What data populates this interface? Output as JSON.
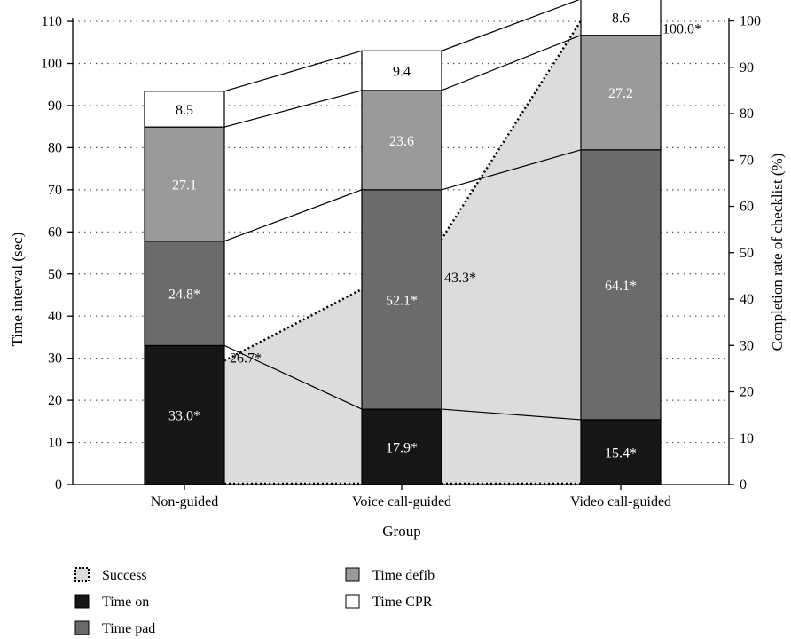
{
  "chart_data": {
    "type": "bar",
    "stacked": true,
    "categories": [
      "Non-guided",
      "Voice call-guided",
      "Video call-guided"
    ],
    "xlabel": "Group",
    "ylabel": "Time interval (sec)",
    "y2label": "Completion rate of checklist (%)",
    "ylim": [
      0,
      115
    ],
    "y_ticks": [
      0,
      10,
      20,
      30,
      40,
      50,
      60,
      70,
      80,
      90,
      100,
      110
    ],
    "y2lim": [
      0,
      100
    ],
    "y2_ticks": [
      0,
      10,
      20,
      30,
      40,
      50,
      60,
      70,
      80,
      90,
      100
    ],
    "grid": "horizontal dotted",
    "legend_position": "bottom-left",
    "series": [
      {
        "name": "Time on",
        "color": "#161616",
        "label_color": "#ffffff",
        "values": [
          33.0,
          17.9,
          15.4
        ],
        "labels": [
          "33.0*",
          "17.9*",
          "15.4*"
        ]
      },
      {
        "name": "Time pad",
        "color": "#6b6b6b",
        "label_color": "#ffffff",
        "values": [
          24.8,
          52.1,
          64.1
        ],
        "labels": [
          "24.8*",
          "52.1*",
          "64.1*"
        ]
      },
      {
        "name": "Time defib",
        "color": "#9a9a9a",
        "label_color": "#ffffff",
        "values": [
          27.1,
          23.6,
          27.2
        ],
        "labels": [
          "27.1",
          "23.6",
          "27.2"
        ]
      },
      {
        "name": "Time CPR",
        "color": "#ffffff",
        "label_color": "#000000",
        "values": [
          8.5,
          9.4,
          8.6
        ],
        "labels": [
          "8.5",
          "9.4",
          "8.6"
        ]
      }
    ],
    "success": {
      "name": "Success",
      "axis": "right",
      "fill": "#dcdcdc",
      "values": [
        26.7,
        43.3,
        100.0
      ],
      "labels": [
        "26.7*",
        "43.3*",
        "100.0*"
      ]
    },
    "legend": [
      "Success",
      "Time on",
      "Time pad",
      "Time defib",
      "Time CPR"
    ]
  }
}
